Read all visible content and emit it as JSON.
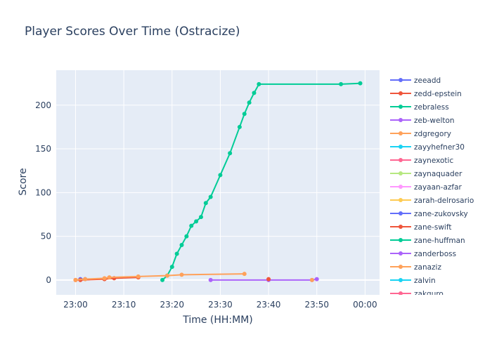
{
  "chart_data": {
    "type": "line",
    "title": "Player Scores Over Time (Ostracize)",
    "xlabel": "Time (HH:MM)",
    "ylabel": "Score",
    "x_tick_labels": [
      "23:00",
      "23:10",
      "23:20",
      "23:30",
      "23:40",
      "23:50",
      "00:00"
    ],
    "y_ticks": [
      0,
      50,
      100,
      150,
      200
    ],
    "xlim": [
      "22:56",
      "00:03"
    ],
    "ylim": [
      -17,
      240
    ],
    "grid": true,
    "legend_position": "right",
    "series": [
      {
        "name": "zeeadd",
        "color": "#636efa",
        "points": [
          [
            "23:01",
            1
          ],
          [
            "23:02",
            1
          ]
        ]
      },
      {
        "name": "zedd-epstein",
        "color": "#ef553b",
        "points": [
          [
            "23:00",
            0
          ],
          [
            "23:01",
            0
          ],
          [
            "23:06",
            1
          ],
          [
            "23:08",
            2
          ],
          [
            "23:13",
            3
          ]
        ]
      },
      {
        "name": "zebraless",
        "color": "#00cc96",
        "points": [
          [
            "23:18",
            0
          ],
          [
            "23:19",
            5
          ],
          [
            "23:20",
            15
          ],
          [
            "23:21",
            30
          ],
          [
            "23:22",
            40
          ],
          [
            "23:23",
            50
          ],
          [
            "23:24",
            62
          ],
          [
            "23:25",
            67
          ],
          [
            "23:26",
            72
          ],
          [
            "23:27",
            88
          ],
          [
            "23:28",
            95
          ],
          [
            "23:30",
            120
          ],
          [
            "23:32",
            145
          ],
          [
            "23:34",
            175
          ],
          [
            "23:35",
            190
          ],
          [
            "23:36",
            203
          ],
          [
            "23:37",
            214
          ],
          [
            "23:38",
            224
          ],
          [
            "23:55",
            224
          ],
          [
            "23:59",
            225
          ]
        ]
      },
      {
        "name": "zeb-welton",
        "color": "#ab63fa",
        "points": [
          [
            "23:28",
            0
          ],
          [
            "23:40",
            0
          ],
          [
            "23:49",
            0
          ],
          [
            "23:50",
            1
          ]
        ]
      },
      {
        "name": "zdgregory",
        "color": "#ffa15a",
        "points": [
          [
            "23:00",
            0
          ],
          [
            "23:02",
            1
          ],
          [
            "23:06",
            2
          ],
          [
            "23:07",
            3
          ],
          [
            "23:13",
            4
          ],
          [
            "23:19",
            5
          ],
          [
            "23:22",
            6
          ],
          [
            "23:35",
            7
          ]
        ]
      },
      {
        "name": "zayyhefner30",
        "color": "#19d3f3",
        "points": []
      },
      {
        "name": "zaynexotic",
        "color": "#ff6692",
        "points": []
      },
      {
        "name": "zaynaquader",
        "color": "#b6e880",
        "points": []
      },
      {
        "name": "zayaan-azfar",
        "color": "#ff97ff",
        "points": []
      },
      {
        "name": "zarah-delrosario",
        "color": "#fecb52",
        "points": []
      },
      {
        "name": "zane-zukovsky",
        "color": "#636efa",
        "points": []
      },
      {
        "name": "zane-swift",
        "color": "#ef553b",
        "points": [
          [
            "23:40",
            1
          ]
        ]
      },
      {
        "name": "zane-huffman",
        "color": "#00cc96",
        "points": []
      },
      {
        "name": "zanderboss",
        "color": "#ab63fa",
        "points": []
      },
      {
        "name": "zanaziz",
        "color": "#ffa15a",
        "points": [
          [
            "23:49",
            0
          ]
        ]
      },
      {
        "name": "zalvin",
        "color": "#19d3f3",
        "points": []
      },
      {
        "name": "zakquro",
        "color": "#ff6692",
        "points": []
      }
    ]
  }
}
